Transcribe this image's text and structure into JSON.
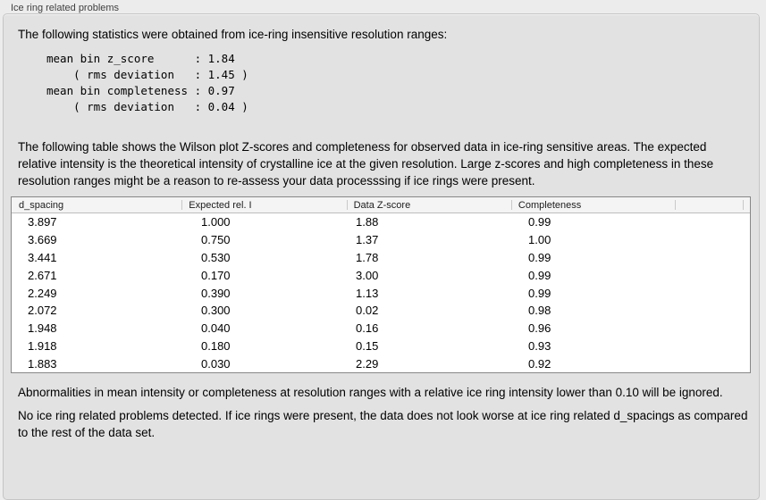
{
  "panel": {
    "title": "Ice ring related problems"
  },
  "intro": "The following statistics were obtained from ice-ring insensitive resolution ranges:",
  "stats": {
    "lines": [
      "mean bin z_score      : 1.84",
      "    ( rms deviation   : 1.45 )",
      "mean bin completeness : 0.97",
      "    ( rms deviation   : 0.04 )"
    ]
  },
  "description": "The following table shows the Wilson plot Z-scores and completeness for observed data in ice-ring sensitive areas. The expected relative intensity is the theoretical intensity of crystalline ice at the given resolution. Large z-scores and high completeness in these resolution ranges might be a reason to re-assess your data processsing if ice rings were present.",
  "table": {
    "columns": [
      "d_spacing",
      "Expected rel. I",
      "Data Z-score",
      "Completeness"
    ],
    "rows": [
      [
        "3.897",
        "1.000",
        "1.88",
        "0.99"
      ],
      [
        "3.669",
        "0.750",
        "1.37",
        "1.00"
      ],
      [
        "3.441",
        "0.530",
        "1.78",
        "0.99"
      ],
      [
        "2.671",
        "0.170",
        "3.00",
        "0.99"
      ],
      [
        "2.249",
        "0.390",
        "1.13",
        "0.99"
      ],
      [
        "2.072",
        "0.300",
        "0.02",
        "0.98"
      ],
      [
        "1.948",
        "0.040",
        "0.16",
        "0.96"
      ],
      [
        "1.918",
        "0.180",
        "0.15",
        "0.93"
      ],
      [
        "1.883",
        "0.030",
        "2.29",
        "0.92"
      ]
    ]
  },
  "note": "Abnormalities in mean intensity or completeness at resolution ranges with a relative ice ring intensity lower than 0.10 will be ignored.",
  "conclusion": "No ice ring related problems detected. If ice rings were present, the data does not look worse at ice ring related d_spacings as compared to the rest of the data set.",
  "colors": {
    "page_bg": "#ececec",
    "panel_bg": "#e2e2e2",
    "table_border": "#878787"
  }
}
